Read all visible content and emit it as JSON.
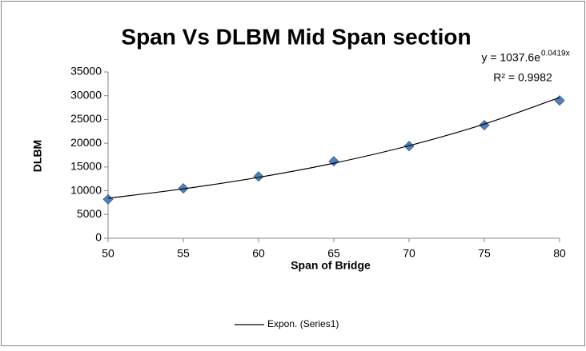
{
  "chart_data": {
    "type": "scatter",
    "title": "Span Vs DLBM Mid Span section",
    "xlabel": "Span of Bridge",
    "ylabel": "DLBM",
    "annotations": {
      "equation": "y = 1037.6e",
      "exponent": "0.0419x",
      "r2": "R² = 0.9982"
    },
    "series": [
      {
        "color": "#4f81bd",
        "x": [
          50,
          55,
          60,
          65,
          70,
          75,
          80
        ],
        "values": [
          8200,
          10500,
          13000,
          16200,
          19400,
          23800,
          29000
        ]
      },
      {
        "name": "Expon. (Series1)",
        "color": "#000000",
        "kind": "line",
        "x": [
          50,
          55,
          60,
          65,
          70,
          75,
          80
        ],
        "values": [
          8430,
          10400,
          12820,
          15800,
          19490,
          24030,
          29630
        ]
      }
    ],
    "xlim": [
      50,
      80
    ],
    "xticks": [
      50,
      55,
      60,
      65,
      70,
      75,
      80
    ],
    "ylim": [
      0,
      35000
    ],
    "yticks": [
      0,
      5000,
      10000,
      15000,
      20000,
      25000,
      30000,
      35000
    ],
    "grid": false,
    "legend": "bottom"
  }
}
